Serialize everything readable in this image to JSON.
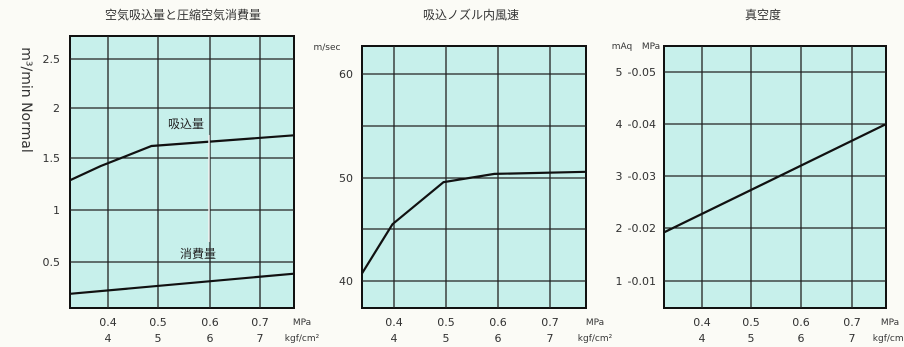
{
  "chart_data": [
    {
      "type": "line",
      "title": "空気吸込量と圧縮空気消費量",
      "ylabel": "m³/min Normal",
      "ylim": [
        0.3,
        2.6
      ],
      "yticks": [
        "0.5",
        "1",
        "1.5",
        "2",
        "2.5"
      ],
      "xlim": [
        0.34,
        0.78
      ],
      "x_unit_top": "MPa",
      "x_unit_bottom": "kgf/cm²",
      "xticks_top": [
        "0.4",
        "0.5",
        "0.6",
        "0.7"
      ],
      "xticks_bottom": [
        "4",
        "5",
        "6",
        "7"
      ],
      "grid": true,
      "series": [
        {
          "name": "吸込量",
          "x": [
            0.34,
            0.4,
            0.5,
            0.78
          ],
          "y": [
            1.38,
            1.5,
            1.67,
            1.76
          ]
        },
        {
          "name": "消費量",
          "x": [
            0.34,
            0.78
          ],
          "y": [
            0.42,
            0.59
          ]
        }
      ]
    },
    {
      "type": "line",
      "title": "吸込ノズル内風速",
      "y_unit": "m/sec",
      "ylim": [
        38,
        63
      ],
      "yticks": [
        "40",
        "50",
        "60"
      ],
      "xlim": [
        0.34,
        0.78
      ],
      "x_unit_top": "MPa",
      "x_unit_bottom": "kgf/cm²",
      "xticks_top": [
        "0.4",
        "0.5",
        "0.6",
        "0.7"
      ],
      "xticks_bottom": [
        "4",
        "5",
        "6",
        "7"
      ],
      "grid": true,
      "series": [
        {
          "x": [
            0.34,
            0.4,
            0.5,
            0.6,
            0.78
          ],
          "y": [
            41.3,
            46,
            50,
            50.8,
            51
          ]
        }
      ]
    },
    {
      "type": "line",
      "title": "真空度",
      "y_unit_left": "mAq",
      "y_unit_right": "MPa",
      "ylim": [
        0.5,
        5.7
      ],
      "yticks_left": [
        "1",
        "2",
        "3",
        "4",
        "5"
      ],
      "yticks_right": [
        "-0.01",
        "-0.02",
        "-0.03",
        "-0.04",
        "-0.05"
      ],
      "xlim": [
        0.34,
        0.78
      ],
      "x_unit_top": "MPa",
      "x_unit_bottom": "kgf/cm²",
      "xticks_top": [
        "0.4",
        "0.5",
        "0.6",
        "0.7"
      ],
      "xticks_bottom": [
        "4",
        "5",
        "6",
        "7"
      ],
      "grid": true,
      "series": [
        {
          "x": [
            0.34,
            0.78
          ],
          "y": [
            2.0,
            4.15
          ]
        }
      ]
    }
  ]
}
